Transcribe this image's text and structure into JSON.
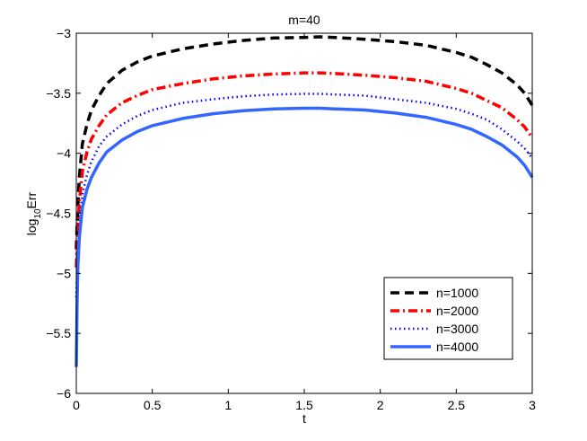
{
  "chart_data": {
    "type": "line",
    "title": "m=40",
    "xlabel": "t",
    "ylabel_main": "log",
    "ylabel_sub": "10",
    "ylabel_tail": "Err",
    "xlim": [
      0,
      3
    ],
    "ylim": [
      -6,
      -3
    ],
    "xticks": [
      0,
      0.5,
      1,
      1.5,
      2,
      2.5,
      3
    ],
    "xtick_labels": [
      "0",
      "0.5",
      "1",
      "1.5",
      "2",
      "2.5",
      "3"
    ],
    "yticks": [
      -6,
      -5.5,
      -5,
      -4.5,
      -4,
      -3.5,
      -3
    ],
    "ytick_labels": [
      "−6",
      "−5.5",
      "−5",
      "−4.5",
      "−4",
      "−3.5",
      "−3"
    ],
    "grid": false,
    "legend_position": "bottom-right",
    "x": [
      0,
      0.005,
      0.01,
      0.02,
      0.04,
      0.07,
      0.1,
      0.15,
      0.2,
      0.3,
      0.4,
      0.5,
      0.7,
      0.9,
      1.1,
      1.3,
      1.5,
      1.6,
      1.7,
      1.9,
      2.1,
      2.3,
      2.5,
      2.6,
      2.7,
      2.8,
      2.9,
      2.95,
      3.0
    ],
    "series": [
      {
        "name": "n=1000",
        "color": "#000000",
        "style": "dashed",
        "values": [
          -4.8,
          -4.6,
          -4.45,
          -4.2,
          -3.92,
          -3.76,
          -3.64,
          -3.52,
          -3.42,
          -3.31,
          -3.24,
          -3.19,
          -3.13,
          -3.09,
          -3.06,
          -3.04,
          -3.035,
          -3.03,
          -3.035,
          -3.05,
          -3.07,
          -3.1,
          -3.16,
          -3.2,
          -3.26,
          -3.33,
          -3.43,
          -3.5,
          -3.6
        ]
      },
      {
        "name": "n=2000",
        "color": "#ff0000",
        "style": "dashdot",
        "values": [
          -4.95,
          -4.8,
          -4.62,
          -4.4,
          -4.15,
          -3.99,
          -3.88,
          -3.77,
          -3.68,
          -3.58,
          -3.52,
          -3.47,
          -3.42,
          -3.38,
          -3.355,
          -3.34,
          -3.33,
          -3.33,
          -3.335,
          -3.35,
          -3.37,
          -3.4,
          -3.46,
          -3.5,
          -3.56,
          -3.62,
          -3.72,
          -3.78,
          -3.87
        ]
      },
      {
        "name": "n=3000",
        "color": "#0000ff",
        "style": "dotted",
        "values": [
          -5.2,
          -5.0,
          -4.85,
          -4.58,
          -4.34,
          -4.18,
          -4.07,
          -3.94,
          -3.86,
          -3.76,
          -3.69,
          -3.64,
          -3.58,
          -3.55,
          -3.525,
          -3.51,
          -3.505,
          -3.505,
          -3.51,
          -3.52,
          -3.55,
          -3.58,
          -3.63,
          -3.67,
          -3.72,
          -3.8,
          -3.9,
          -3.96,
          -4.04
        ]
      },
      {
        "name": "n=4000",
        "color": "#3366ff",
        "style": "solid",
        "values": [
          -5.78,
          -5.3,
          -4.95,
          -4.7,
          -4.45,
          -4.3,
          -4.2,
          -4.08,
          -3.99,
          -3.89,
          -3.82,
          -3.77,
          -3.71,
          -3.67,
          -3.645,
          -3.63,
          -3.625,
          -3.625,
          -3.63,
          -3.64,
          -3.665,
          -3.7,
          -3.76,
          -3.8,
          -3.86,
          -3.93,
          -4.03,
          -4.1,
          -4.2
        ]
      }
    ]
  }
}
